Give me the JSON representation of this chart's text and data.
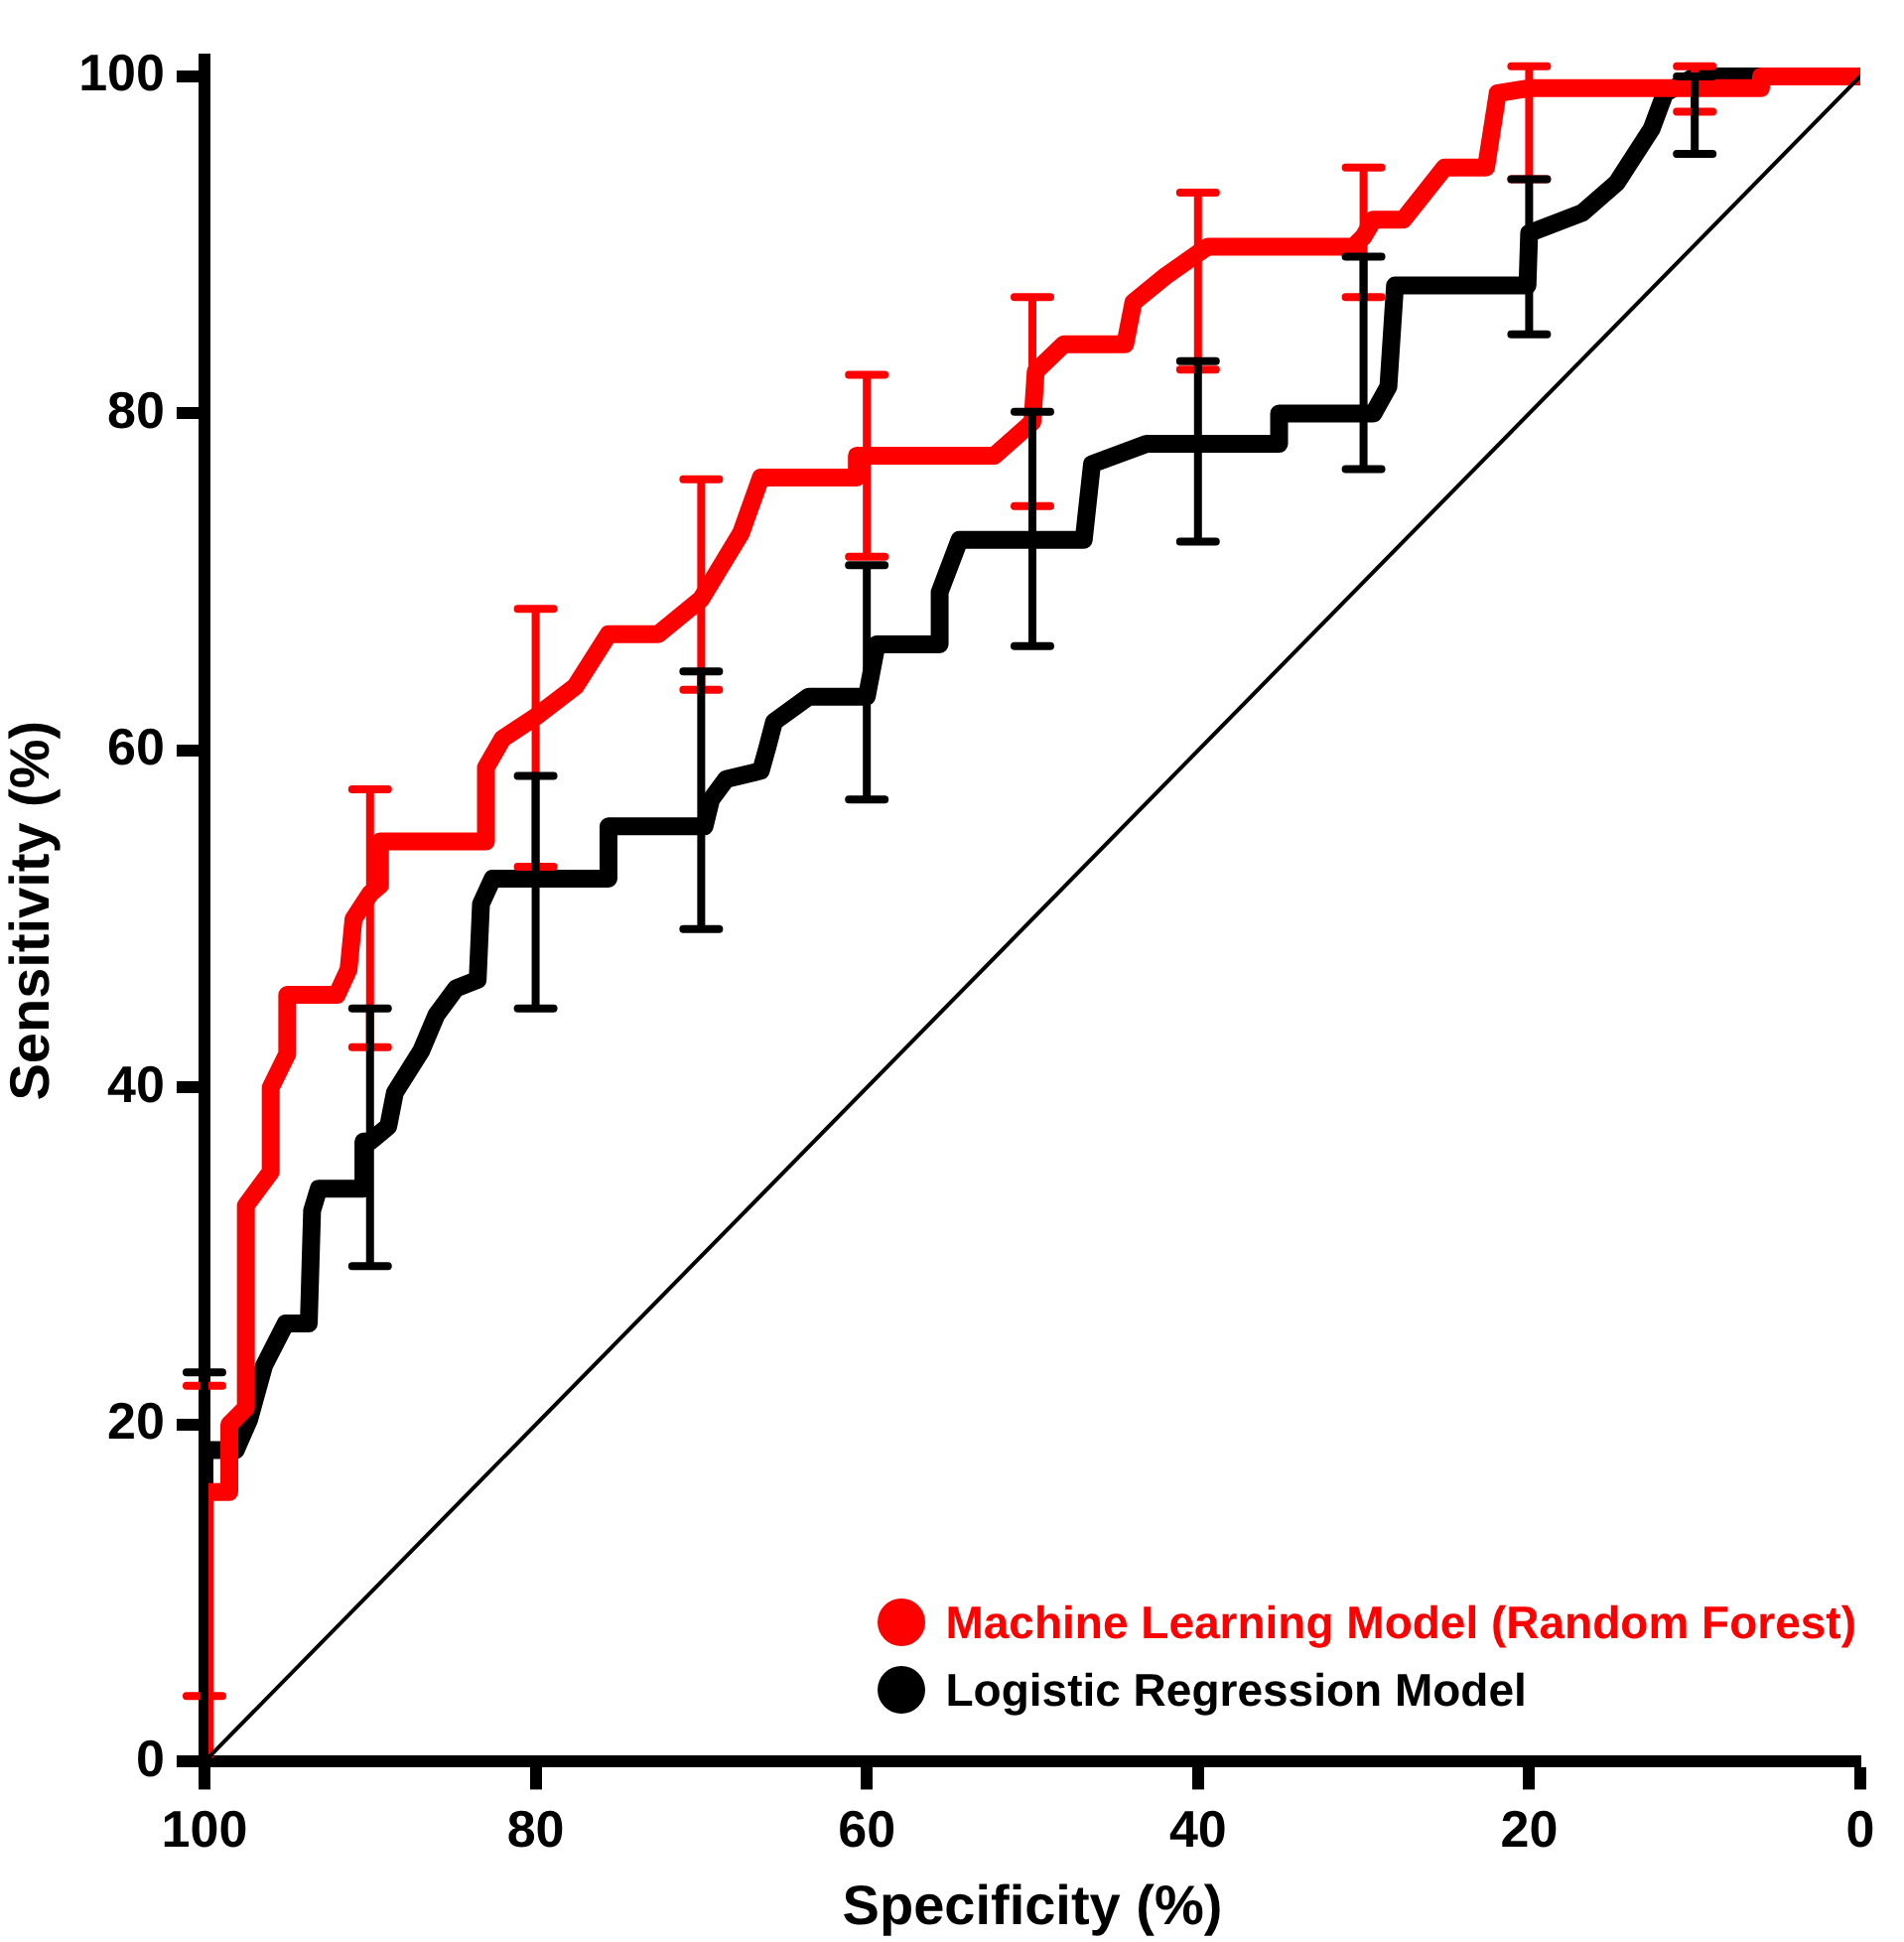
{
  "chart_data": {
    "type": "line",
    "xlabel": "Specificity (%)",
    "ylabel": "Sensitivity (%)",
    "xlim": [
      100,
      0
    ],
    "xticks": [
      100,
      80,
      60,
      40,
      20,
      0
    ],
    "ylim": [
      0,
      101
    ],
    "yticks": [
      0,
      20,
      40,
      60,
      80,
      100
    ],
    "grid": false,
    "legend": "bottom right",
    "marker": "none",
    "line_style": "solid",
    "series": [
      {
        "name": "Machine Learning Model (Random Forest)",
        "color": "#ff0000",
        "x": [
          100,
          100,
          98.5,
          98.5,
          97.5,
          97.5,
          96,
          96,
          95,
          95,
          92,
          91.3,
          91,
          90,
          89.4,
          89.4,
          83,
          83,
          82,
          80,
          77.6,
          75.6,
          72.6,
          70,
          67.6,
          66.4,
          60.6,
          60.6,
          60,
          52.3,
          50,
          49.8,
          48.1,
          44.4,
          43.9,
          41.9,
          40,
          39.4,
          30.6,
          30,
          29.4,
          27.6,
          25.1,
          22.6,
          21.9,
          20,
          10,
          6,
          6,
          0
        ],
        "values": [
          0,
          16,
          16,
          20,
          21,
          33,
          35,
          40,
          42,
          45.5,
          45.5,
          47,
          50,
          51.5,
          52,
          54.6,
          54.6,
          59,
          60.7,
          62,
          63.8,
          66.9,
          66.9,
          69,
          72.9,
          76.2,
          76.2,
          77.5,
          77.5,
          77.5,
          79.5,
          82.5,
          84.1,
          84.1,
          86.6,
          88.2,
          89.5,
          89.9,
          89.9,
          90.5,
          91.5,
          91.5,
          94.6,
          94.6,
          99,
          99.3,
          99.3,
          99.3,
          100,
          100
        ],
        "errors": [
          null,
          [
            3.9,
            22.3
          ],
          null,
          null,
          null,
          null,
          null,
          null,
          null,
          null,
          null,
          null,
          null,
          [
            42.4,
            57.7
          ],
          null,
          null,
          null,
          null,
          null,
          [
            53.1,
            68.4
          ],
          null,
          null,
          null,
          [
            63.6,
            76.1
          ],
          null,
          null,
          null,
          null,
          [
            71.5,
            82.3
          ],
          null,
          [
            74.5,
            86.9
          ],
          null,
          null,
          null,
          null,
          null,
          [
            82.6,
            93.1
          ],
          null,
          null,
          [
            86.9,
            94.6
          ],
          null,
          null,
          null,
          null,
          null,
          [
            93.9,
            100.6
          ],
          [
            97.9,
            100.6
          ],
          null,
          null,
          null
        ]
      },
      {
        "name": "Logistic Regression Model",
        "color": "#000000",
        "x": [
          100,
          100,
          98.1,
          97.3,
          96.4,
          95.1,
          93.7,
          93.5,
          93.1,
          90.4,
          90.4,
          90,
          88.9,
          88.5,
          86.9,
          86,
          84.8,
          83.5,
          83.3,
          82.6,
          80,
          75.6,
          75.6,
          70,
          69.8,
          69.4,
          68.5,
          66.4,
          66,
          65.6,
          63.5,
          60,
          59.4,
          55.6,
          55.6,
          54.4,
          50,
          46.9,
          46.4,
          43.1,
          40,
          35.1,
          35.1,
          30,
          29.4,
          28.5,
          28.1,
          20.1,
          20,
          16.8,
          14.7,
          12.6,
          11.8,
          10,
          0
        ],
        "values": [
          0,
          18.5,
          18.5,
          20.3,
          23.5,
          26,
          26,
          32.7,
          34,
          34,
          36.8,
          36.8,
          37.7,
          39.7,
          42.2,
          44.3,
          45.9,
          46.4,
          50.9,
          52.4,
          52.4,
          52.4,
          55.5,
          55.5,
          55.5,
          57.1,
          58.3,
          58.8,
          60.2,
          61.7,
          63.2,
          63.2,
          66.3,
          66.3,
          69.4,
          72.5,
          72.5,
          72.5,
          77,
          78.2,
          78.2,
          78.2,
          80,
          80,
          80,
          81.6,
          87.6,
          87.6,
          90.7,
          91.9,
          93.7,
          96.9,
          99,
          100,
          100
        ],
        "errors": [
          null,
          [
            0,
            23.1
          ],
          null,
          null,
          null,
          null,
          null,
          null,
          null,
          null,
          null,
          [
            29.4,
            44.7
          ],
          null,
          null,
          null,
          null,
          null,
          null,
          null,
          null,
          [
            44.7,
            58.5
          ],
          null,
          null,
          [
            49.4,
            64.7
          ],
          null,
          null,
          null,
          null,
          null,
          null,
          null,
          [
            57.1,
            71
          ],
          null,
          null,
          null,
          null,
          [
            66.2,
            80.1
          ],
          null,
          null,
          null,
          [
            72.4,
            83.1
          ],
          null,
          null,
          [
            76.7,
            89.3
          ],
          null,
          null,
          null,
          null,
          [
            84.7,
            93.9
          ],
          null,
          null,
          null,
          null,
          [
            95.4,
            100
          ],
          null
        ]
      },
      {
        "color": "#000000",
        "x": [
          100,
          0
        ],
        "values": [
          0,
          100
        ]
      }
    ]
  }
}
